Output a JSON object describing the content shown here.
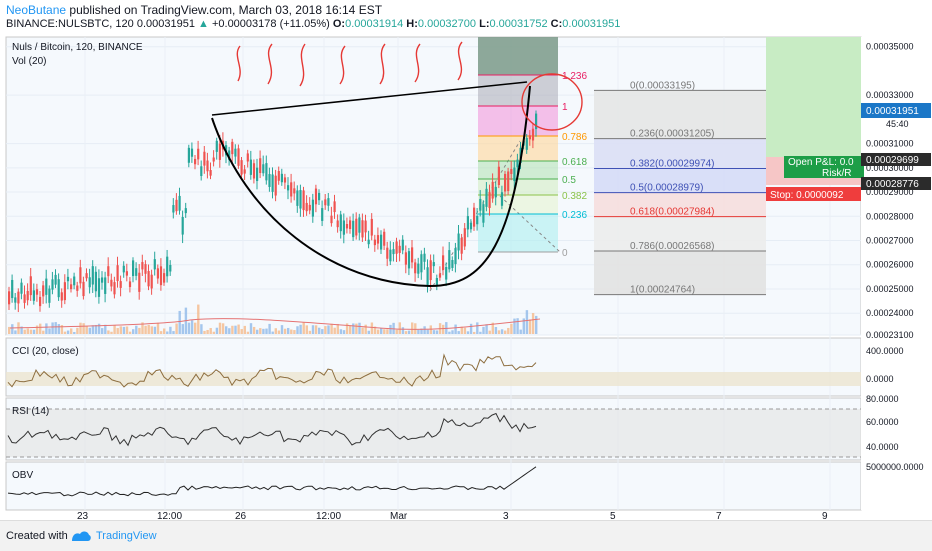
{
  "header": {
    "author": "NeoButane",
    "published_text": "published on TradingView.com, March 03, 2018 16:14 EST",
    "symbol": "BINANCE:NULSBTC, 120",
    "last": "0.00031951",
    "change": "+0.00003178 (+11.05%)",
    "o_label": "O:",
    "o_value": "0.00031914",
    "h_label": "H:",
    "h_value": "0.00032700",
    "l_label": "L:",
    "l_value": "0.00031752",
    "c_label": "C:",
    "c_value": "0.00031951"
  },
  "footer": {
    "created_with": "Created with",
    "brand": "TradingView"
  },
  "colors": {
    "up": "#26a69a",
    "down": "#ef5350",
    "volume_up": "#90b9e8",
    "volume_down": "#f5b98a",
    "accent": "#2196f3"
  },
  "chart_data": {
    "type": "line",
    "title": "Nuls / Bitcoin, 120, BINANCE",
    "volume_label": "Vol (20)",
    "x_ticks": [
      "23",
      "12:00",
      "26",
      "12:00",
      "Mar",
      "3",
      "5",
      "7",
      "9"
    ],
    "y_ticks": [
      "0.00035000",
      "0.00033000",
      "0.00031000",
      "0.00030000",
      "0.00029000",
      "0.00028000",
      "0.00027000",
      "0.00026000",
      "0.00025000",
      "0.00024000",
      "0.00023100"
    ],
    "y_range": [
      0.000231,
      0.000354
    ],
    "price_marker": {
      "value": "0.00031951",
      "time": "45:40"
    },
    "other_markers": [
      "0.00029699",
      "0.00028776"
    ],
    "position": {
      "pnl_label": "Open P&L: 0.0",
      "risk_label": "Risk/R",
      "stop_label": "Stop: 0.0000092"
    },
    "fib_extension": [
      {
        "level": "1.236",
        "color": "#e91e63"
      },
      {
        "level": "1",
        "color": "#e91e63"
      },
      {
        "level": "0.786",
        "color": "#ff9800"
      },
      {
        "level": "0.618",
        "color": "#4caf50"
      },
      {
        "level": "0.5",
        "color": "#4caf50"
      },
      {
        "level": "0.382",
        "color": "#8bc34a"
      },
      {
        "level": "0.236",
        "color": "#00bcd4"
      },
      {
        "level": "0",
        "color": "#9e9e9e"
      }
    ],
    "fib_retracement": [
      {
        "label": "0(0.00033195)",
        "price": 0.00033195,
        "color": "#787878"
      },
      {
        "label": "0.236(0.00031205)",
        "price": 0.00031205,
        "color": "#787878"
      },
      {
        "label": "0.382(0.00029974)",
        "price": 0.00029974,
        "color": "#3f51b5"
      },
      {
        "label": "0.5(0.00028979)",
        "price": 0.00028979,
        "color": "#3f51b5"
      },
      {
        "label": "0.618(0.00027984)",
        "price": 0.00027984,
        "color": "#e53935"
      },
      {
        "label": "0.786(0.00026568)",
        "price": 0.00026568,
        "color": "#787878"
      },
      {
        "label": "1(0.00024764)",
        "price": 0.00024764,
        "color": "#787878"
      }
    ],
    "indicators": [
      {
        "name": "CCI (20, close)",
        "ticks": [
          "400.0000",
          "0.0000"
        ]
      },
      {
        "name": "RSI (14)",
        "ticks": [
          "80.0000",
          "60.0000",
          "40.0000"
        ]
      },
      {
        "name": "OBV",
        "ticks": [
          "5000000.0000"
        ]
      }
    ]
  }
}
